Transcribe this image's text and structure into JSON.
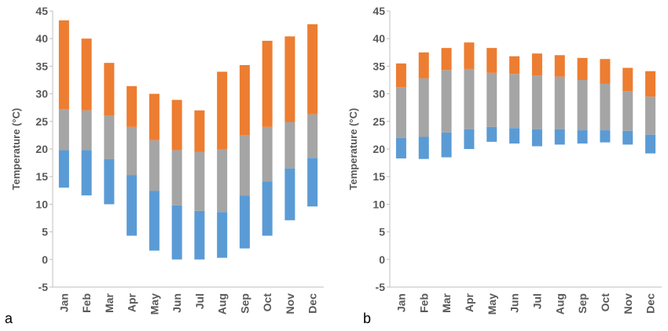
{
  "figure": {
    "panel_labels": [
      "a",
      "b"
    ]
  },
  "colors": {
    "low": "#5b9bd5",
    "mid": "#a5a5a5",
    "high": "#ed7d31",
    "axis": "#595959"
  },
  "chart_data": [
    {
      "type": "bar",
      "stacked": true,
      "panel": "a",
      "categories": [
        "Jan",
        "Feb",
        "Mar",
        "Apr",
        "May",
        "Jun",
        "Jul",
        "Aug",
        "Sep",
        "Oct",
        "Nov",
        "Dec"
      ],
      "ylabel": "Temperature (°C)",
      "xlabel": "",
      "ylim": [
        -5,
        45
      ],
      "yticks": [
        -5,
        0,
        5,
        10,
        15,
        20,
        25,
        30,
        35,
        40,
        45
      ],
      "grid": false,
      "legend": "none",
      "floating_bars": [
        [
          13.0,
          19.8,
          27.2,
          43.3
        ],
        [
          11.6,
          19.8,
          27.0,
          40.0
        ],
        [
          10.0,
          18.2,
          26.0,
          35.6
        ],
        [
          4.3,
          15.3,
          24.0,
          31.4
        ],
        [
          1.6,
          12.4,
          21.6,
          30.0
        ],
        [
          0.0,
          9.8,
          19.8,
          28.9
        ],
        [
          0.0,
          8.8,
          19.5,
          27.0
        ],
        [
          0.3,
          8.6,
          20.0,
          34.0
        ],
        [
          2.0,
          11.6,
          22.5,
          35.2
        ],
        [
          4.3,
          14.1,
          24.0,
          39.6
        ],
        [
          7.1,
          16.5,
          24.9,
          40.4
        ],
        [
          9.6,
          18.4,
          26.3,
          42.6
        ]
      ]
    },
    {
      "type": "bar",
      "stacked": true,
      "panel": "b",
      "categories": [
        "Jan",
        "Feb",
        "Mar",
        "Apr",
        "May",
        "Jun",
        "Jul",
        "Aug",
        "Sep",
        "Oct",
        "Nov",
        "Dec"
      ],
      "ylabel": "Temperature (°C)",
      "xlabel": "",
      "ylim": [
        -5,
        45
      ],
      "yticks": [
        -5,
        0,
        5,
        10,
        15,
        20,
        25,
        30,
        35,
        40,
        45
      ],
      "grid": false,
      "legend": "none",
      "floating_bars": [
        [
          18.3,
          22.0,
          31.2,
          35.5
        ],
        [
          18.2,
          22.2,
          32.8,
          37.5
        ],
        [
          18.5,
          23.0,
          34.3,
          38.3
        ],
        [
          20.0,
          23.6,
          34.5,
          39.3
        ],
        [
          21.3,
          24.0,
          33.8,
          38.3
        ],
        [
          21.0,
          23.8,
          33.6,
          36.8
        ],
        [
          20.5,
          23.6,
          33.3,
          37.3
        ],
        [
          20.8,
          23.6,
          33.1,
          37.0
        ],
        [
          21.0,
          23.4,
          32.5,
          36.5
        ],
        [
          21.2,
          23.4,
          31.8,
          36.3
        ],
        [
          20.8,
          23.3,
          30.5,
          34.7
        ],
        [
          19.2,
          22.6,
          29.5,
          34.1
        ]
      ]
    }
  ]
}
